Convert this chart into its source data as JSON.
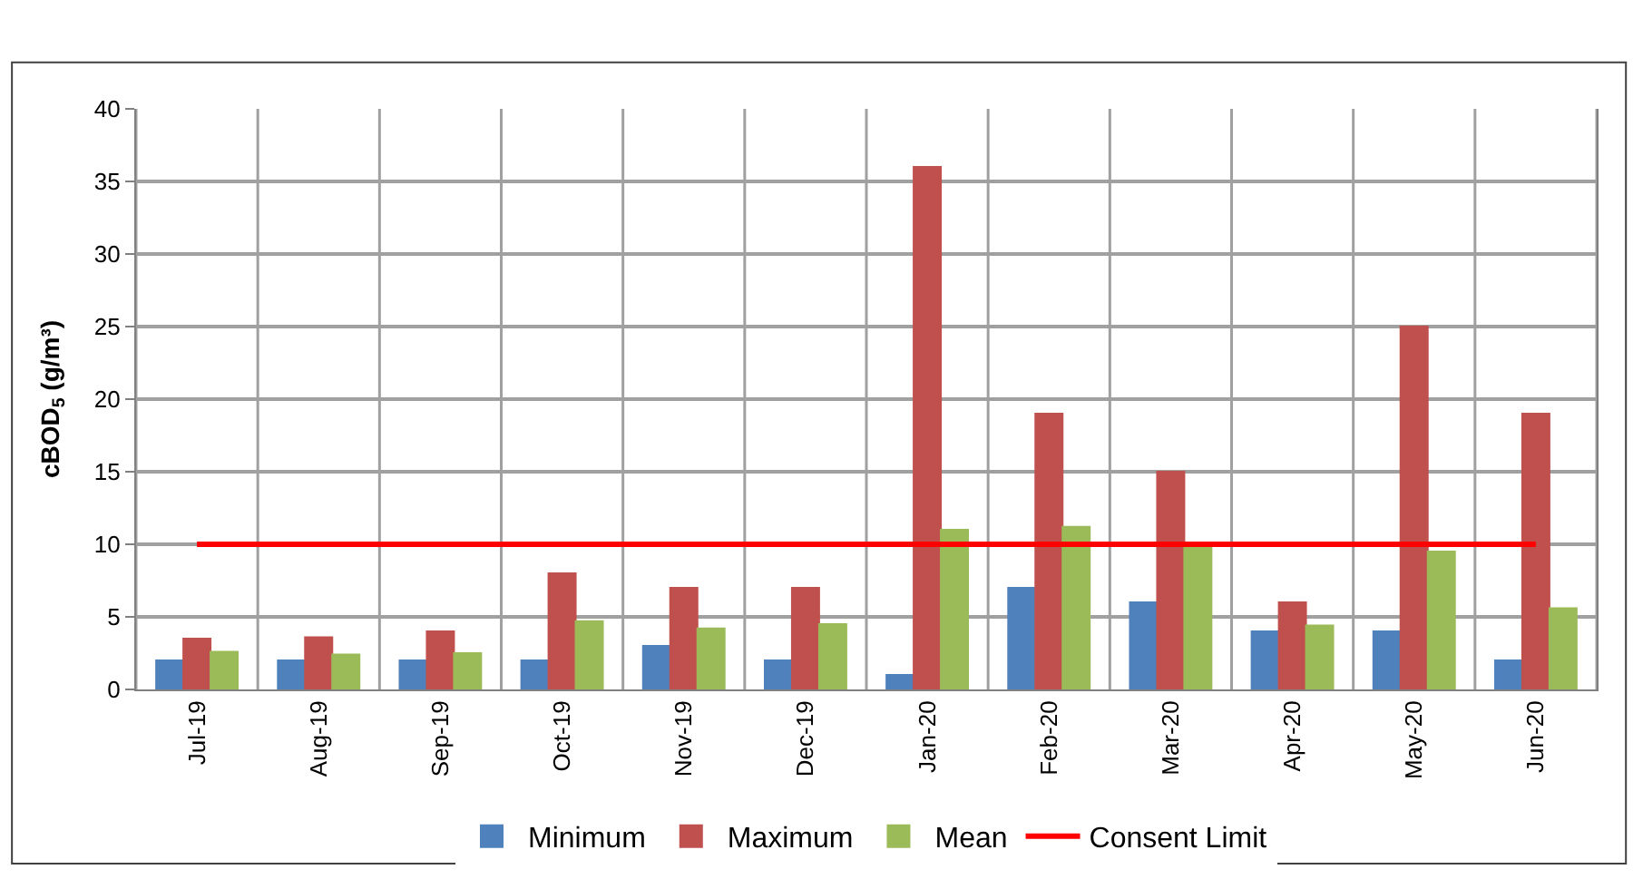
{
  "chart_data": {
    "type": "bar",
    "ylabel": "cBOD$_{5}$ (g/m³)",
    "categories": [
      "Jul-19",
      "Aug-19",
      "Sep-19",
      "Oct-19",
      "Nov-19",
      "Dec-19",
      "Jan-20",
      "Feb-20",
      "Mar-20",
      "Apr-20",
      "May-20",
      "Jun-20"
    ],
    "series": [
      {
        "name": "Minimum",
        "color": "#4f81bd",
        "values": [
          2,
          2,
          2,
          2,
          3,
          2,
          1,
          7,
          6,
          4,
          4,
          2
        ]
      },
      {
        "name": "Maximum",
        "color": "#c0504d",
        "values": [
          3.5,
          3.6,
          4,
          8,
          7,
          7,
          36,
          19,
          15,
          6,
          25,
          19
        ]
      },
      {
        "name": "Mean",
        "color": "#9bbb59",
        "values": [
          2.6,
          2.4,
          2.5,
          4.7,
          4.2,
          4.5,
          11,
          11.2,
          10,
          4.4,
          9.5,
          5.6
        ]
      },
      {
        "name": "Consent Limit",
        "type": "line",
        "color": "#ff0000",
        "values": [
          10,
          10,
          10,
          10,
          10,
          10,
          10,
          10,
          10,
          10,
          10,
          10
        ]
      }
    ],
    "ylim": [
      0,
      40
    ],
    "yticks": [
      0,
      5,
      10,
      15,
      20,
      25,
      30,
      35,
      40
    ],
    "grid": true,
    "legend": "bottom",
    "marker": "none",
    "line_style": "solid"
  }
}
